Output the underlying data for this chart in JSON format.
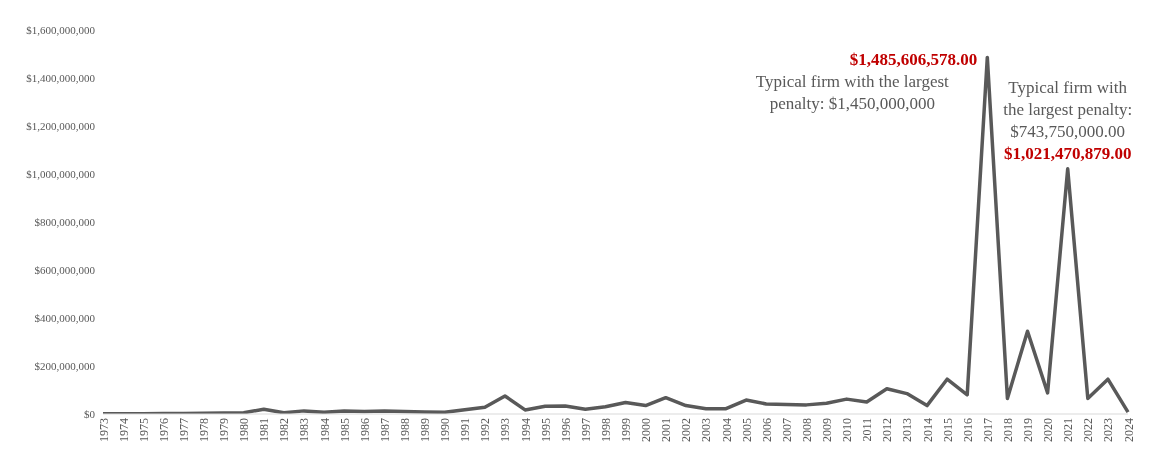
{
  "chart_data": {
    "type": "line",
    "categories": [
      "1973",
      "1974",
      "1975",
      "1976",
      "1977",
      "1978",
      "1979",
      "1980",
      "1981",
      "1982",
      "1983",
      "1984",
      "1985",
      "1986",
      "1987",
      "1988",
      "1989",
      "1990",
      "1991",
      "1992",
      "1993",
      "1994",
      "1995",
      "1996",
      "1997",
      "1998",
      "1999",
      "2000",
      "2001",
      "2002",
      "2003",
      "2004",
      "2005",
      "2006",
      "2007",
      "2008",
      "2009",
      "2010",
      "2011",
      "2012",
      "2013",
      "2014",
      "2015",
      "2016",
      "2017",
      "2018",
      "2019",
      "2020",
      "2021",
      "2022",
      "2023",
      "2024"
    ],
    "series": [
      {
        "color": "#595959",
        "values": [
          1000000,
          1000000,
          1000000,
          2000000,
          2000000,
          3000000,
          4000000,
          5000000,
          20000000,
          5000000,
          13000000,
          7000000,
          12000000,
          10000000,
          12000000,
          10000000,
          8000000,
          7000000,
          18000000,
          28000000,
          75000000,
          17000000,
          32000000,
          33000000,
          20000000,
          30000000,
          48000000,
          35000000,
          68000000,
          35000000,
          22000000,
          22000000,
          58000000,
          42000000,
          40000000,
          38000000,
          45000000,
          62000000,
          50000000,
          105000000,
          85000000,
          35000000,
          145000000,
          80000000,
          1485606578,
          65000000,
          345000000,
          88000000,
          1021470879,
          65000000,
          145000000,
          8000000
        ],
        "value_labels": [
          null,
          null,
          null,
          null,
          null,
          null,
          null,
          null,
          null,
          null,
          null,
          null,
          null,
          null,
          null,
          null,
          null,
          null,
          null,
          null,
          null,
          null,
          null,
          null,
          null,
          null,
          null,
          null,
          null,
          null,
          null,
          null,
          null,
          null,
          null,
          null,
          null,
          null,
          null,
          null,
          null,
          null,
          null,
          null,
          "$1,485,606,578.00",
          null,
          null,
          null,
          "$1,021,470,879.00",
          null,
          null,
          null
        ]
      }
    ],
    "annotations": [
      "Typical firm with the largest penalty: $1,450,000,000",
      "Typical firm with the largest penalty: $743,750,000.00"
    ],
    "ylim": [
      0,
      1600000000
    ],
    "yticks": [
      {
        "value": 0,
        "label": "$0"
      },
      {
        "value": 200000000,
        "label": "$200,000,000"
      },
      {
        "value": 400000000,
        "label": "$400,000,000"
      },
      {
        "value": 600000000,
        "label": "$600,000,000"
      },
      {
        "value": 800000000,
        "label": "$800,000,000"
      },
      {
        "value": 1000000000,
        "label": "$1,000,000,000"
      },
      {
        "value": 1200000000,
        "label": "$1,200,000,000"
      },
      {
        "value": 1400000000,
        "label": "$1,400,000,000"
      },
      {
        "value": 1600000000,
        "label": "$1,600,000,000"
      }
    ],
    "grid": false,
    "legend": false,
    "marker": "none",
    "line_style": "solid"
  }
}
